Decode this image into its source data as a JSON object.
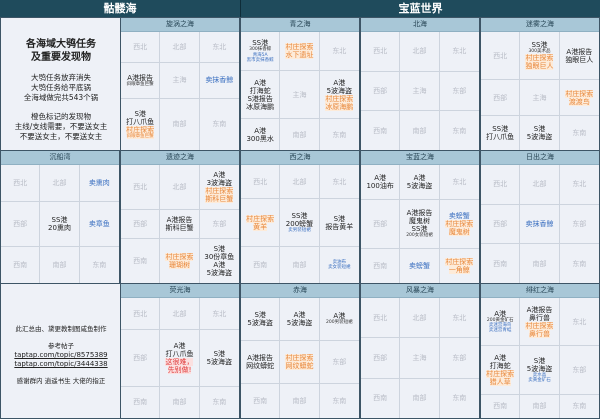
{
  "headers": {
    "left": "骷髅海",
    "right": "宝蓝世界"
  },
  "intro": {
    "title": [
      "各海域大鸮任务",
      "及重要发现物"
    ],
    "notes": [
      "大鸮任务放弃消失",
      "大鸮任务给平底锅",
      "全海域做完共543个锅"
    ],
    "legend": [
      "橙色标记的发现物",
      "主线/支线需要，不要送女主",
      "不要送女主，不要送女主"
    ]
  },
  "credits": {
    "author": "此汇总由、黛更教制图咸鱼制作",
    "ref_label": "参考帖子",
    "links": [
      "taptap.com/topic/8575389",
      "taptap.com/topic/3444338"
    ],
    "thanks": "感谢群内 逍遥书生 大佬的指正"
  },
  "colors": {
    "header": "#1f4b5c",
    "subheader": "#a8c7d7",
    "orange": "#e8873a",
    "blue": "#3a6fc0",
    "red": "#e03a3a",
    "gray": "#b9bdc7"
  },
  "seas": [
    {
      "name": "旋涡之海",
      "cells": [
        [
          {
            "t": "西北",
            "k": "g"
          }
        ],
        [
          {
            "t": "北部",
            "k": "g"
          }
        ],
        [
          {
            "t": "东北",
            "k": "g"
          }
        ],
        [
          {
            "t": "A港报告",
            "k": "d"
          },
          {
            "t": "斜眼章鱼巨蟹",
            "k": "s"
          }
        ],
        [
          {
            "t": "主海",
            "k": "g"
          }
        ],
        [
          {
            "t": "卖抹香鲸",
            "k": "b"
          }
        ],
        [
          {
            "t": "S港",
            "k": "d"
          },
          {
            "t": "打八爪鱼",
            "k": "d"
          },
          {
            "t": "村庄探索",
            "k": "o"
          },
          {
            "t": "斜眼章鱼巨蟹",
            "k": "so"
          }
        ],
        [
          {
            "t": "南部",
            "k": "g"
          }
        ],
        [
          {
            "t": "东南",
            "k": "g"
          }
        ]
      ]
    },
    {
      "name": "青之海",
      "cells": [
        [
          {
            "t": "SS港",
            "k": "d"
          },
          {
            "t": "300抹香鲸",
            "k": "s"
          },
          {
            "t": "青海5A",
            "k": "sb"
          },
          {
            "t": "黑市卖抹香鲸",
            "k": "sb"
          }
        ],
        [
          {
            "t": "村庄探索",
            "k": "o"
          },
          {
            "t": "水下遗址",
            "k": "o"
          }
        ],
        [
          {
            "t": "东北",
            "k": "g"
          }
        ],
        [
          {
            "t": "A港",
            "k": "d"
          },
          {
            "t": "打海蛇",
            "k": "d"
          },
          {
            "t": "S港报告",
            "k": "d"
          },
          {
            "t": "冰原海鹏",
            "k": "d"
          }
        ],
        [
          {
            "t": "主海",
            "k": "g"
          }
        ],
        [
          {
            "t": "A港",
            "k": "d"
          },
          {
            "t": "5波海盗",
            "k": "d"
          },
          {
            "t": "村庄探索",
            "k": "o"
          },
          {
            "t": "冰原海鹏",
            "k": "o"
          }
        ],
        [
          {
            "t": "A港",
            "k": "d"
          },
          {
            "t": "300黑水",
            "k": "d"
          }
        ],
        [
          {
            "t": "南部",
            "k": "g"
          }
        ],
        [
          {
            "t": "东南",
            "k": "g"
          }
        ]
      ]
    },
    {
      "name": "北海",
      "cells": [
        [
          {
            "t": "西北",
            "k": "g"
          }
        ],
        [
          {
            "t": "北部",
            "k": "g"
          }
        ],
        [
          {
            "t": "东北",
            "k": "g"
          }
        ],
        [
          {
            "t": "西部",
            "k": "g"
          }
        ],
        [
          {
            "t": "主海",
            "k": "g"
          }
        ],
        [
          {
            "t": "东部",
            "k": "g"
          }
        ],
        [
          {
            "t": "西南",
            "k": "g"
          }
        ],
        [
          {
            "t": "南部",
            "k": "g"
          }
        ],
        [
          {
            "t": "东南",
            "k": "g"
          }
        ]
      ]
    },
    {
      "name": "迷雾之海",
      "cells": [
        [
          {
            "t": "西北",
            "k": "g"
          }
        ],
        [
          {
            "t": "SS港",
            "k": "d"
          },
          {
            "t": "300美术品",
            "k": "s"
          },
          {
            "t": "村庄探索",
            "k": "o"
          },
          {
            "t": "独眼巨人",
            "k": "o"
          }
        ],
        [
          {
            "t": "A港报告",
            "k": "d"
          },
          {
            "t": "独眼巨人",
            "k": "d"
          }
        ],
        [
          {
            "t": "西部",
            "k": "g"
          }
        ],
        [
          {
            "t": "主海",
            "k": "g"
          }
        ],
        [
          {
            "t": "村庄探索",
            "k": "o"
          },
          {
            "t": "渡渡鸟",
            "k": "o"
          }
        ],
        [
          {
            "t": "SS港",
            "k": "d"
          },
          {
            "t": "打八爪鱼",
            "k": "d"
          }
        ],
        [
          {
            "t": "S港",
            "k": "d"
          },
          {
            "t": "5波海盗",
            "k": "d"
          }
        ],
        [
          {
            "t": "东南",
            "k": "g"
          }
        ]
      ]
    },
    {
      "name": "沉船湾",
      "cells": [
        [
          {
            "t": "西北",
            "k": "g"
          }
        ],
        [
          {
            "t": "北部",
            "k": "g"
          }
        ],
        [
          {
            "t": "卖熏肉",
            "k": "b"
          }
        ],
        [
          {
            "t": "西部",
            "k": "g"
          }
        ],
        [
          {
            "t": "SS港",
            "k": "d"
          },
          {
            "t": "20熏肉",
            "k": "d"
          }
        ],
        [
          {
            "t": "卖章鱼",
            "k": "b"
          }
        ],
        [
          {
            "t": "西南",
            "k": "g"
          }
        ],
        [
          {
            "t": "南部",
            "k": "g"
          }
        ],
        [
          {
            "t": "东南",
            "k": "g"
          }
        ]
      ]
    },
    {
      "name": "遗迹之海",
      "cells": [
        [
          {
            "t": "西北",
            "k": "g"
          }
        ],
        [
          {
            "t": "北部",
            "k": "g"
          }
        ],
        [
          {
            "t": "A港",
            "k": "d"
          },
          {
            "t": "3波海盗",
            "k": "d"
          },
          {
            "t": "村庄探索",
            "k": "o"
          },
          {
            "t": "斯科巨蟹",
            "k": "o"
          }
        ],
        [
          {
            "t": "西部",
            "k": "g"
          }
        ],
        [
          {
            "t": "A港报告",
            "k": "d"
          },
          {
            "t": "斯科巨蟹",
            "k": "d"
          }
        ],
        [
          {
            "t": "东部",
            "k": "g"
          }
        ],
        [
          {
            "t": "西南",
            "k": "g"
          }
        ],
        [
          {
            "t": "村庄探索",
            "k": "o"
          },
          {
            "t": "珊瑚树",
            "k": "o"
          }
        ],
        [
          {
            "t": "S港",
            "k": "d"
          },
          {
            "t": "30份章鱼",
            "k": "d"
          },
          {
            "t": "A港",
            "k": "d"
          },
          {
            "t": "5波海盗",
            "k": "d"
          }
        ]
      ]
    },
    {
      "name": "西之海",
      "cells": [
        [
          {
            "t": "西北",
            "k": "g"
          }
        ],
        [
          {
            "t": "北部",
            "k": "g"
          }
        ],
        [
          {
            "t": "东北",
            "k": "g"
          }
        ],
        [
          {
            "t": "村庄探索",
            "k": "o"
          },
          {
            "t": "黄羊",
            "k": "o"
          }
        ],
        [
          {
            "t": "SS港",
            "k": "d"
          },
          {
            "t": "200螃蟹",
            "k": "d"
          },
          {
            "t": "卖男装短裙",
            "k": "sb"
          }
        ],
        [
          {
            "t": "S港",
            "k": "d"
          },
          {
            "t": "报告黄羊",
            "k": "d"
          }
        ],
        [
          {
            "t": "西南",
            "k": "g"
          }
        ],
        [
          {
            "t": "南部",
            "k": "g"
          }
        ],
        [
          {
            "t": "卖油布",
            "k": "sb"
          },
          {
            "t": "卖女装短裙",
            "k": "sb"
          }
        ]
      ]
    },
    {
      "name": "宝蓝之海",
      "cells": [
        [
          {
            "t": "A港",
            "k": "d"
          },
          {
            "t": "100油布",
            "k": "d"
          }
        ],
        [
          {
            "t": "A港",
            "k": "d"
          },
          {
            "t": "5波海盗",
            "k": "d"
          }
        ],
        [
          {
            "t": "东北",
            "k": "g"
          }
        ],
        [
          {
            "t": "西部",
            "k": "g"
          }
        ],
        [
          {
            "t": "A港报告",
            "k": "d"
          },
          {
            "t": "魔鬼树",
            "k": "d"
          },
          {
            "t": "SS港",
            "k": "d"
          },
          {
            "t": "200女装短裙",
            "k": "s"
          }
        ],
        [
          {
            "t": "卖螃蟹",
            "k": "b"
          },
          {
            "t": "村庄探索",
            "k": "o"
          },
          {
            "t": "魔鬼树",
            "k": "o"
          }
        ],
        [
          {
            "t": "西南",
            "k": "g"
          }
        ],
        [
          {
            "t": "卖螃蟹",
            "k": "b"
          }
        ],
        [
          {
            "t": "村庄探索",
            "k": "o"
          },
          {
            "t": "一角鲸",
            "k": "o"
          }
        ]
      ]
    },
    {
      "name": "日出之海",
      "cells": [
        [
          {
            "t": "西北",
            "k": "g"
          }
        ],
        [
          {
            "t": "北部",
            "k": "g"
          }
        ],
        [
          {
            "t": "东北",
            "k": "g"
          }
        ],
        [
          {
            "t": "西部",
            "k": "g"
          }
        ],
        [
          {
            "t": "卖抹香鲸",
            "k": "b"
          }
        ],
        [
          {
            "t": "东部",
            "k": "g"
          }
        ],
        [
          {
            "t": "西南",
            "k": "g"
          }
        ],
        [
          {
            "t": "南部",
            "k": "g"
          }
        ],
        [
          {
            "t": "东南",
            "k": "g"
          }
        ]
      ]
    },
    {
      "name": "荧光海",
      "cells": [
        [
          {
            "t": "西北",
            "k": "g"
          }
        ],
        [
          {
            "t": "北部",
            "k": "g"
          }
        ],
        [
          {
            "t": "东北",
            "k": "g"
          }
        ],
        [
          {
            "t": "西部",
            "k": "g"
          }
        ],
        [
          {
            "t": "A港",
            "k": "d"
          },
          {
            "t": "打八爪鱼",
            "k": "d"
          },
          {
            "t": "这很难，",
            "k": "r"
          },
          {
            "t": "先别做!",
            "k": "r"
          }
        ],
        [
          {
            "t": "S港",
            "k": "d"
          },
          {
            "t": "5波海盗",
            "k": "d"
          }
        ],
        [
          {
            "t": "西南",
            "k": "g"
          }
        ],
        [
          {
            "t": "南部",
            "k": "g"
          }
        ],
        [
          {
            "t": "东南",
            "k": "g"
          }
        ]
      ]
    },
    {
      "name": "赤海",
      "cells": [
        [
          {
            "t": "S港",
            "k": "d"
          },
          {
            "t": "5波海盗",
            "k": "d"
          }
        ],
        [
          {
            "t": "A港",
            "k": "d"
          },
          {
            "t": "5波海盗",
            "k": "d"
          }
        ],
        [
          {
            "t": "A港",
            "k": "d"
          },
          {
            "t": "200男装短裙",
            "k": "s"
          }
        ],
        [
          {
            "t": "A港报告",
            "k": "d"
          },
          {
            "t": "网纹蟒蛇",
            "k": "d"
          }
        ],
        [
          {
            "t": "村庄探索",
            "k": "o"
          },
          {
            "t": "网纹蟒蛇",
            "k": "o"
          }
        ],
        [
          {
            "t": "东部",
            "k": "g"
          }
        ],
        [
          {
            "t": "西南",
            "k": "g"
          }
        ],
        [
          {
            "t": "南部",
            "k": "g"
          }
        ],
        [
          {
            "t": "东南",
            "k": "g"
          }
        ]
      ]
    },
    {
      "name": "风暴之海",
      "cells": [
        [
          {
            "t": "西北",
            "k": "g"
          }
        ],
        [
          {
            "t": "北部",
            "k": "g"
          }
        ],
        [
          {
            "t": "东北",
            "k": "g"
          }
        ],
        [
          {
            "t": "西部",
            "k": "g"
          }
        ],
        [
          {
            "t": "主海",
            "k": "g"
          }
        ],
        [
          {
            "t": "东部",
            "k": "g"
          }
        ],
        [
          {
            "t": "西南",
            "k": "g"
          }
        ],
        [
          {
            "t": "南部",
            "k": "g"
          }
        ],
        [
          {
            "t": "东南",
            "k": "g"
          }
        ]
      ]
    },
    {
      "name": "绯红之海",
      "cells": [
        [
          {
            "t": "A港",
            "k": "d"
          },
          {
            "t": "200黄金矿石",
            "k": "s"
          },
          {
            "t": "卖迷宫海鸟",
            "k": "sb"
          },
          {
            "t": "卖迷宫青蛙",
            "k": "sb"
          }
        ],
        [
          {
            "t": "A港报告",
            "k": "d"
          },
          {
            "t": "鼻行兽",
            "k": "d"
          },
          {
            "t": "村庄探索",
            "k": "o"
          },
          {
            "t": "鼻行兽",
            "k": "o"
          }
        ],
        [
          {
            "t": "东北",
            "k": "g"
          }
        ],
        [
          {
            "t": "A港",
            "k": "d"
          },
          {
            "t": "打海蛇",
            "k": "d"
          },
          {
            "t": "村庄探索",
            "k": "o"
          },
          {
            "t": "猎人草",
            "k": "o"
          }
        ],
        [
          {
            "t": "S港",
            "k": "d"
          },
          {
            "t": "5波海盗",
            "k": "d"
          },
          {
            "t": "卖水晶",
            "k": "sb"
          },
          {
            "t": "卖黄金矿石",
            "k": "sb"
          }
        ],
        [
          {
            "t": "东部",
            "k": "g"
          }
        ],
        [
          {
            "t": "西南",
            "k": "g"
          }
        ],
        [
          {
            "t": "南部",
            "k": "g"
          }
        ],
        [
          {
            "t": "东南",
            "k": "g"
          }
        ]
      ]
    }
  ]
}
